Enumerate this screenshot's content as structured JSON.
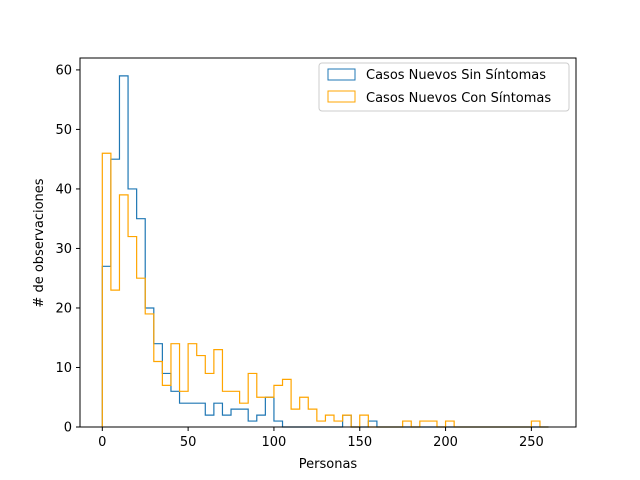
{
  "chart_data": {
    "type": "histogram",
    "xlabel": "Personas",
    "ylabel": "# de observaciones",
    "xlim": [
      -13,
      276
    ],
    "ylim": [
      0,
      62
    ],
    "x_ticks": [
      0,
      50,
      100,
      150,
      200,
      250
    ],
    "y_ticks": [
      0,
      10,
      20,
      30,
      40,
      50,
      60
    ],
    "grid": false,
    "legend_position": "top-right",
    "series": [
      {
        "name": "Casos Nuevos Sin Síntomas",
        "color": "#1f77b4",
        "bin_start": 0,
        "bin_width": 5,
        "values": [
          27,
          45,
          59,
          40,
          35,
          20,
          14,
          9,
          6,
          4,
          4,
          4,
          2,
          4,
          2,
          3,
          3,
          1,
          2,
          5,
          1,
          0,
          0,
          0,
          0,
          0,
          0,
          0,
          2,
          0,
          0,
          1,
          0,
          0,
          0,
          0,
          0,
          0,
          0,
          0,
          0,
          0,
          0,
          0,
          0,
          0,
          0,
          0,
          0,
          0,
          0,
          0
        ]
      },
      {
        "name": "Casos Nuevos Con Síntomas",
        "color": "#ffa500",
        "bin_start": 0,
        "bin_width": 5,
        "values": [
          46,
          23,
          39,
          32,
          25,
          19,
          11,
          7,
          14,
          6,
          14,
          12,
          9,
          13,
          6,
          6,
          4,
          9,
          5,
          5,
          7,
          8,
          3,
          5,
          3,
          1,
          2,
          1,
          2,
          0,
          2,
          0,
          0,
          0,
          0,
          1,
          0,
          1,
          1,
          0,
          1,
          0,
          0,
          0,
          0,
          0,
          0,
          0,
          0,
          0,
          1,
          0
        ]
      }
    ]
  }
}
